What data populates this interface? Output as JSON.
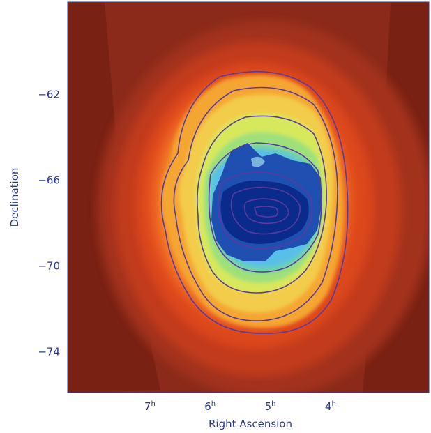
{
  "chart_data": {
    "type": "heatmap",
    "title": "",
    "xlabel": "Right Ascension",
    "ylabel": "Declination",
    "x_ticks": [
      {
        "value": 7,
        "label": "7",
        "superscript": "h"
      },
      {
        "value": 6,
        "label": "6",
        "superscript": "h"
      },
      {
        "value": 5,
        "label": "5",
        "superscript": "h"
      },
      {
        "value": 4,
        "label": "4",
        "superscript": "h"
      }
    ],
    "y_ticks": [
      {
        "value": -62,
        "label": "−62"
      },
      {
        "value": -66,
        "label": "−66"
      },
      {
        "value": -70,
        "label": "−70"
      },
      {
        "value": -74,
        "label": "−74"
      }
    ],
    "xlim": [
      8.4,
      2.4
    ],
    "ylim": [
      -75.9,
      -57.7
    ],
    "colormap": [
      "#8b2a1a",
      "#b8361e",
      "#e0451f",
      "#f06a22",
      "#f59a2e",
      "#f3c84a",
      "#d9e85a",
      "#9fe07a",
      "#6cd0b0",
      "#58c0e8",
      "#1f4fb0",
      "#0a2a8a"
    ],
    "contour_color": "#5a3aa0",
    "intensity_peak": {
      "ra": 5.2,
      "dec": -68.3
    },
    "grid": false
  },
  "colors": {
    "background": "#8b2a1a",
    "axis_text": "#2b3a8f"
  }
}
